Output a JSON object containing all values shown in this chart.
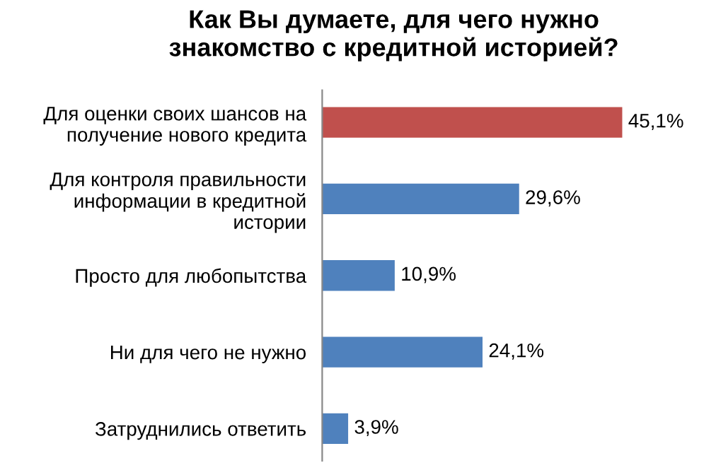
{
  "chart_data": {
    "type": "bar",
    "orientation": "horizontal",
    "title": "Как Вы думаете, для чего нужно\nзнакомство с кредитной историей?",
    "categories": [
      "Для оценки своих шансов на\nполучение нового кредита",
      "Для контроля правильности\nинформации в кредитной\nистории",
      "Просто для любопытства",
      "Ни для чего не нужно",
      "Затруднились ответить"
    ],
    "values": [
      45.1,
      29.6,
      10.9,
      24.1,
      3.9
    ],
    "colors": [
      "#c0504d",
      "#4f81bd",
      "#4f81bd",
      "#4f81bd",
      "#4f81bd"
    ],
    "value_labels": [
      "45,1%",
      "29,6%",
      "10,9%",
      "24,1%",
      "3,9%"
    ]
  }
}
